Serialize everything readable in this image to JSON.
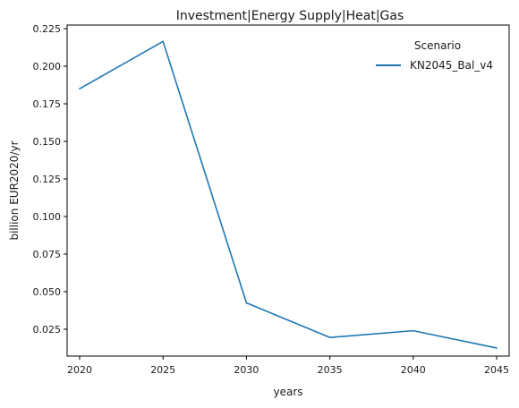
{
  "chart_data": {
    "type": "line",
    "title": "Investment|Energy Supply|Heat|Gas",
    "xlabel": "years",
    "ylabel": "billion EUR2020/yr",
    "x": [
      2020,
      2025,
      2030,
      2035,
      2040,
      2045
    ],
    "x_ticks": [
      {
        "value": 2020,
        "label": "2020"
      },
      {
        "value": 2025,
        "label": "2025"
      },
      {
        "value": 2030,
        "label": "2030"
      },
      {
        "value": 2035,
        "label": "2035"
      },
      {
        "value": 2040,
        "label": "2040"
      },
      {
        "value": 2045,
        "label": "2045"
      }
    ],
    "y_ticks": [
      {
        "value": 0.025,
        "label": "0.025"
      },
      {
        "value": 0.05,
        "label": "0.050"
      },
      {
        "value": 0.075,
        "label": "0.075"
      },
      {
        "value": 0.1,
        "label": "0.100"
      },
      {
        "value": 0.125,
        "label": "0.125"
      },
      {
        "value": 0.15,
        "label": "0.150"
      },
      {
        "value": 0.175,
        "label": "0.175"
      },
      {
        "value": 0.2,
        "label": "0.200"
      },
      {
        "value": 0.225,
        "label": "0.225"
      }
    ],
    "xlim": [
      2019.25,
      2045.75
    ],
    "ylim": [
      0.0071,
      0.2274
    ],
    "grid": false,
    "legend": {
      "title": "Scenario",
      "placement": "top-right"
    },
    "series": [
      {
        "name": "KN2045_Bal_v4",
        "color": "#1f77b4",
        "values": [
          0.185,
          0.2165,
          0.0425,
          0.0195,
          0.024,
          0.0125
        ]
      }
    ]
  }
}
